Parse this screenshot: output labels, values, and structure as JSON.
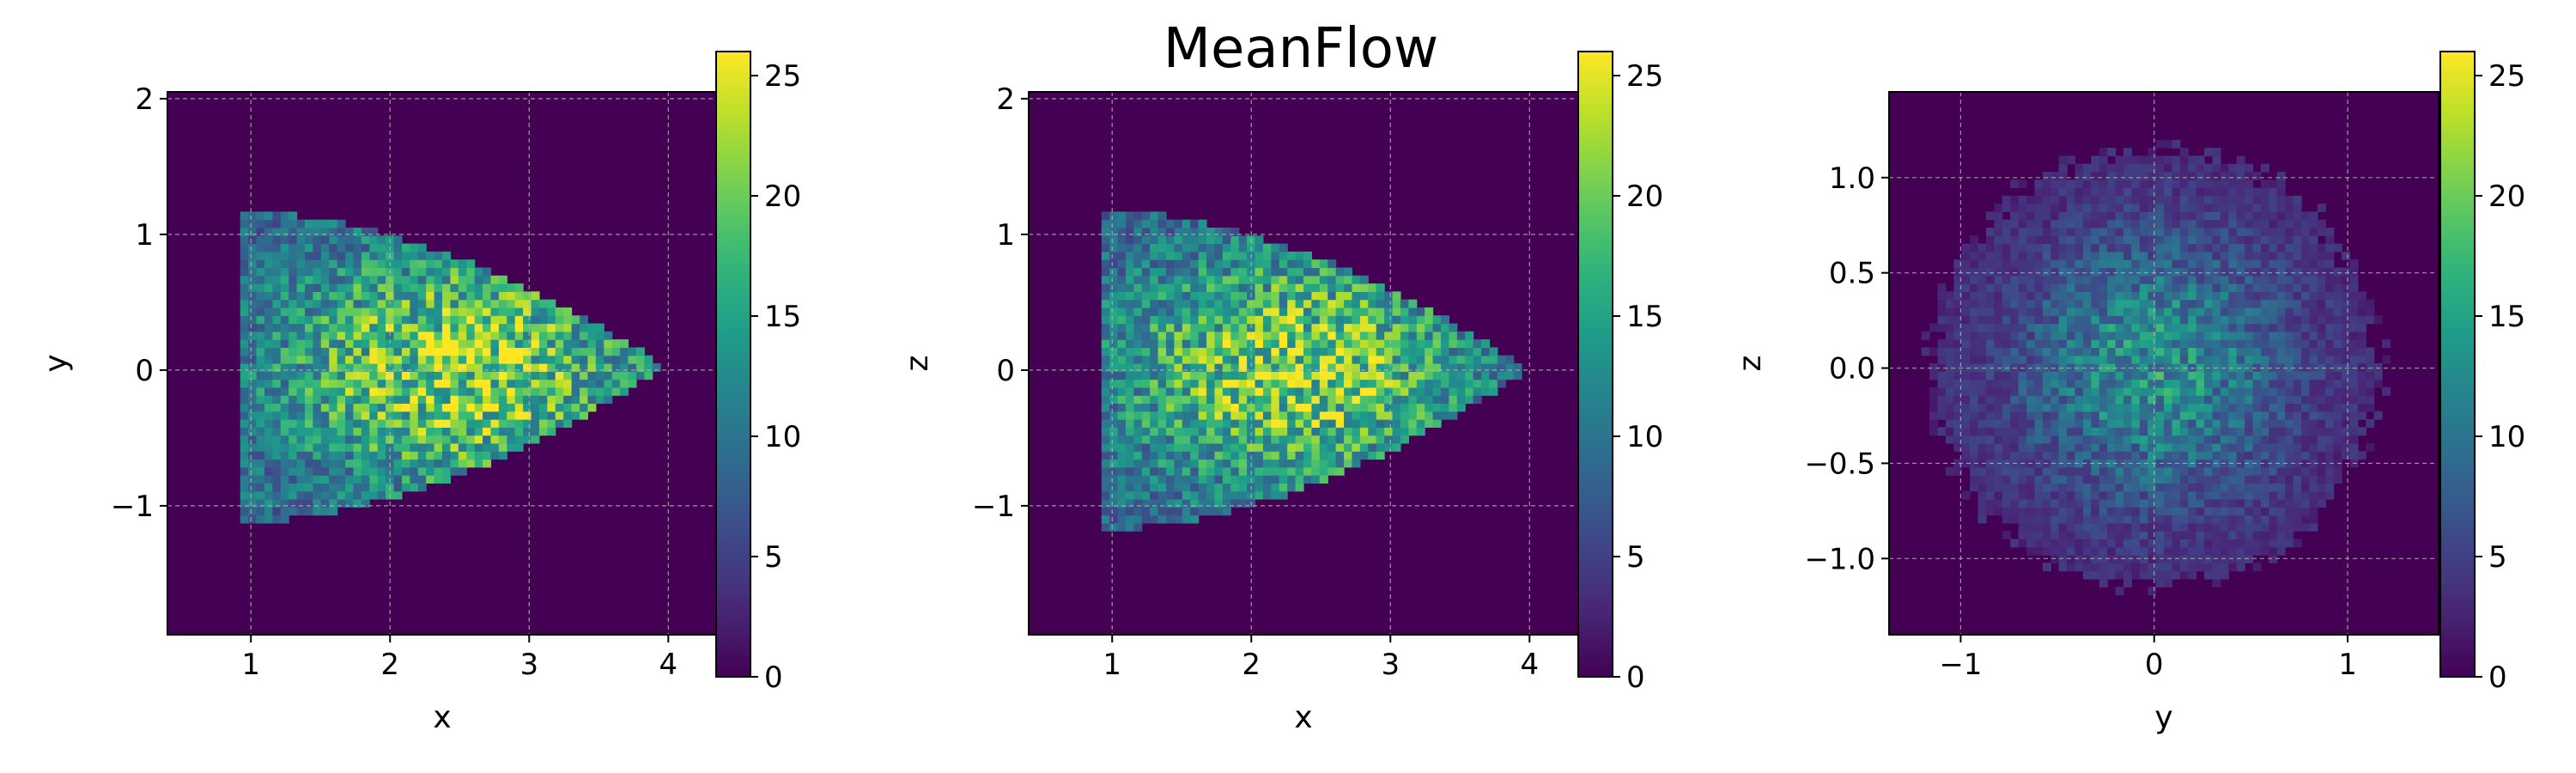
{
  "title": "MeanFlow",
  "colormap": "viridis",
  "colors": {
    "background": "#440154",
    "grid": "#b8b8b8"
  },
  "chart_data": [
    {
      "type": "heatmap",
      "title": "",
      "xlabel": "x",
      "ylabel": "y",
      "xlim": [
        0.4,
        4.35
      ],
      "ylim": [
        -1.95,
        2.05
      ],
      "xticks": [
        1,
        2,
        3,
        4
      ],
      "yticks": [
        -1,
        0,
        1,
        2
      ],
      "xtick_labels": [
        "1",
        "2",
        "3",
        "4"
      ],
      "ytick_labels": [
        "−1",
        "0",
        "1",
        "2"
      ],
      "grid": true,
      "colorbar": {
        "min": 0,
        "max": 26,
        "ticks": [
          0,
          5,
          10,
          15,
          20,
          25
        ],
        "tick_labels": [
          "0",
          "5",
          "10",
          "15",
          "20",
          "25"
        ]
      },
      "density": {
        "shape": "triangle",
        "x_range": [
          0.9,
          3.95
        ],
        "y_range": [
          -1.1,
          1.15
        ],
        "peak": [
          2.5,
          0.0
        ],
        "peak_value": 25
      }
    },
    {
      "type": "heatmap",
      "title": "",
      "xlabel": "x",
      "ylabel": "z",
      "xlim": [
        0.4,
        4.35
      ],
      "ylim": [
        -1.95,
        2.05
      ],
      "xticks": [
        1,
        2,
        3,
        4
      ],
      "yticks": [
        -1,
        0,
        1,
        2
      ],
      "xtick_labels": [
        "1",
        "2",
        "3",
        "4"
      ],
      "ytick_labels": [
        "−1",
        "0",
        "1",
        "2"
      ],
      "grid": true,
      "colorbar": {
        "min": 0,
        "max": 26,
        "ticks": [
          0,
          5,
          10,
          15,
          20,
          25
        ],
        "tick_labels": [
          "0",
          "5",
          "10",
          "15",
          "20",
          "25"
        ]
      },
      "density": {
        "shape": "triangle",
        "x_range": [
          0.95,
          3.95
        ],
        "y_range": [
          -1.15,
          1.15
        ],
        "peak": [
          2.3,
          0.0
        ],
        "peak_value": 24
      }
    },
    {
      "type": "heatmap",
      "title": "",
      "xlabel": "y",
      "ylabel": "z",
      "xlim": [
        -1.37,
        1.47
      ],
      "ylim": [
        -1.4,
        1.45
      ],
      "xticks": [
        -1,
        0,
        1
      ],
      "yticks": [
        -1.0,
        -0.5,
        0.0,
        0.5,
        1.0
      ],
      "xtick_labels": [
        "−1",
        "0",
        "1"
      ],
      "ytick_labels": [
        "−1.0",
        "−0.5",
        "0.0",
        "0.5",
        "1.0"
      ],
      "grid": true,
      "colorbar": {
        "min": 0,
        "max": 26,
        "ticks": [
          0,
          5,
          10,
          15,
          20,
          25
        ],
        "tick_labels": [
          "0",
          "5",
          "10",
          "15",
          "20",
          "25"
        ]
      },
      "density": {
        "shape": "disc",
        "center": [
          0.0,
          0.0
        ],
        "radius": 1.15,
        "peak_value": 22
      }
    }
  ]
}
